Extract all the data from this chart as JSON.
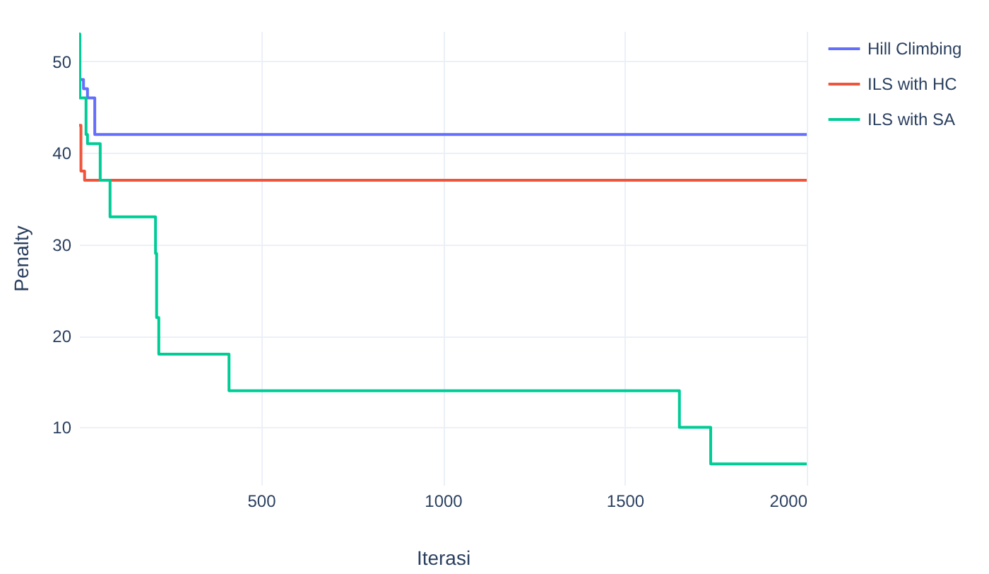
{
  "chart_data": {
    "type": "step",
    "xlabel": "Iterasi",
    "ylabel": "Penalty",
    "xlim": [
      0,
      2000
    ],
    "xticks": [
      500,
      1000,
      1500,
      2000
    ],
    "ylim": [
      3.7,
      53.3
    ],
    "yticks": [
      10,
      20,
      30,
      40,
      50
    ],
    "grid": true,
    "legend": "top right",
    "series": [
      {
        "name": "Hill Climbing",
        "color": "#636efa",
        "x": [
          0,
          12,
          23,
          43,
          2000
        ],
        "values": [
          48,
          47,
          46,
          42,
          42
        ]
      },
      {
        "name": "ILS with HC",
        "color": "#ef553b",
        "x": [
          0,
          5,
          15,
          2000
        ],
        "values": [
          43,
          38,
          37,
          37
        ]
      },
      {
        "name": "ILS with SA",
        "color": "#00cc96",
        "x": [
          0,
          2,
          19,
          23,
          58,
          85,
          210,
          213,
          219,
          412,
          1650,
          1736,
          2000
        ],
        "values": [
          53,
          46,
          42,
          41,
          37,
          33,
          29,
          22,
          18,
          14,
          10,
          6,
          6
        ]
      }
    ]
  }
}
